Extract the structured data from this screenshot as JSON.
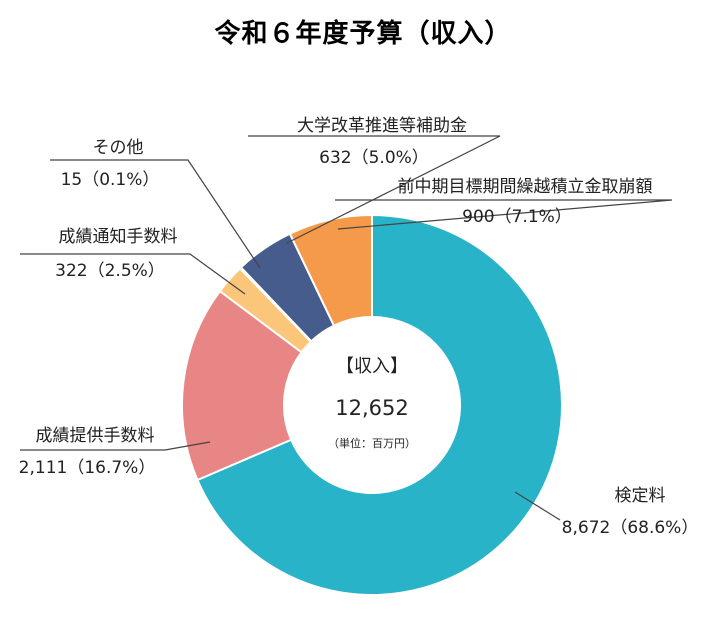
{
  "chart_data": {
    "type": "pie",
    "title": "令和６年度予算（収入）",
    "center": {
      "heading": "【収入】",
      "total": "12,652",
      "unit": "（単位：百万円）"
    },
    "slices": [
      {
        "name": "検定料",
        "value": 8672,
        "value_label": "8,672（68.6%）",
        "color": "#29B3C9"
      },
      {
        "name": "成績提供手数料",
        "value": 2111,
        "value_label": "2,111（16.7%）",
        "color": "#E88585"
      },
      {
        "name": "成績通知手数料",
        "value": 322,
        "value_label": "322（2.5%）",
        "color": "#FBC67A"
      },
      {
        "name": "その他",
        "value": 15,
        "value_label": "15（0.1%）",
        "color": "#3F5B8C"
      },
      {
        "name": "大学改革推進等補助金",
        "value": 632,
        "value_label": "632（5.0%）",
        "color": "#465C8C"
      },
      {
        "name": "前中期目標期間繰越積立金取崩額",
        "value": 900,
        "value_label": "900（7.1%）",
        "color": "#F59A4A"
      }
    ]
  }
}
